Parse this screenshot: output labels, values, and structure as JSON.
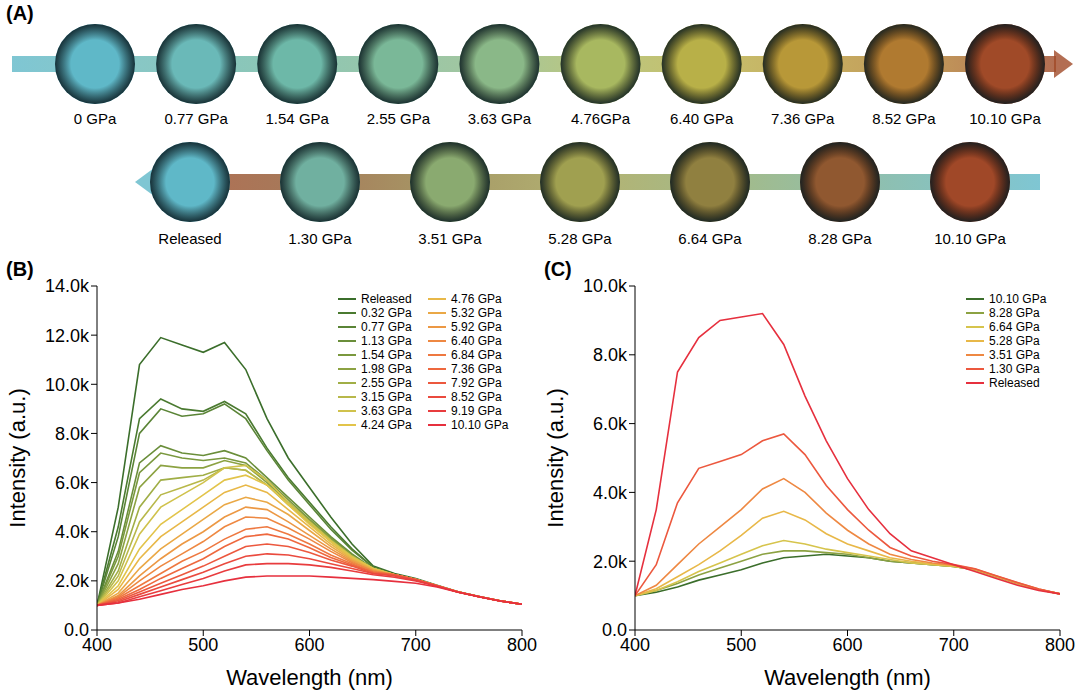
{
  "panel_a": {
    "label": "(A)",
    "rows": [
      {
        "labels": [
          "0 GPa",
          "0.77 GPa",
          "1.54 GPa",
          "2.55 GPa",
          "3.63 GPa",
          "4.76GPa",
          "6.40 GPa",
          "7.36 GPa",
          "8.52 GPa",
          "10.10 GPa"
        ],
        "colors": [
          "#5fb8c8",
          "#6ab9b8",
          "#6db8a8",
          "#7ab898",
          "#8ab888",
          "#a8b860",
          "#b8b048",
          "#b89838",
          "#b07a30",
          "#a04a28"
        ]
      },
      {
        "labels": [
          "Released",
          "1.30 GPa",
          "3.51 GPa",
          "5.28 GPa",
          "6.64 GPa",
          "8.28 GPa",
          "10.10 GPa"
        ],
        "colors": [
          "#5fb8c8",
          "#70b0a0",
          "#8aaa70",
          "#a0a050",
          "#908040",
          "#905830",
          "#a04828"
        ]
      }
    ]
  },
  "chart_data": [
    {
      "type": "line",
      "title": "(B)",
      "x_label": "Wavelength (nm)",
      "y_label": "Intensity (a.u.)",
      "legend": "upper right",
      "x": [
        400,
        420,
        440,
        460,
        480,
        500,
        520,
        540,
        560,
        580,
        600,
        620,
        640,
        660,
        680,
        700,
        720,
        740,
        760,
        780,
        800
      ],
      "xlim": [
        400,
        800
      ],
      "xticks": [
        400,
        500,
        600,
        700,
        800
      ],
      "ylim": [
        0,
        14000
      ],
      "yticks": [
        {
          "value": 0,
          "label": "0.0"
        },
        {
          "value": 2000,
          "label": "2.0k"
        },
        {
          "value": 4000,
          "label": "4.0k"
        },
        {
          "value": 6000,
          "label": "6.0k"
        },
        {
          "value": 8000,
          "label": "8.0k"
        },
        {
          "value": 10000,
          "label": "10.0k"
        },
        {
          "value": 12000,
          "label": "12.0k"
        },
        {
          "value": 14000,
          "label": "14.0k"
        }
      ],
      "series": [
        {
          "name": "Released",
          "color": "#3b6e2b",
          "values": [
            1000,
            5000,
            10800,
            11900,
            11600,
            11300,
            11700,
            10600,
            8600,
            7000,
            5800,
            4600,
            3500,
            2600,
            2300,
            2100,
            1820,
            1560,
            1360,
            1180,
            1050
          ]
        },
        {
          "name": "0.32 GPa",
          "color": "#4a7a30",
          "values": [
            1000,
            4200,
            8600,
            9400,
            9000,
            8900,
            9300,
            8800,
            7400,
            6200,
            5200,
            4200,
            3300,
            2550,
            2250,
            2050,
            1800,
            1550,
            1350,
            1180,
            1050
          ]
        },
        {
          "name": "0.77 GPa",
          "color": "#5a8436",
          "values": [
            1000,
            3800,
            8000,
            9000,
            8700,
            8800,
            9200,
            8600,
            7300,
            6100,
            5100,
            4100,
            3250,
            2550,
            2250,
            2050,
            1800,
            1550,
            1350,
            1180,
            1050
          ]
        },
        {
          "name": "1.13 GPa",
          "color": "#6a8e3a",
          "values": [
            1000,
            3200,
            6800,
            7500,
            7200,
            7100,
            7300,
            7000,
            6200,
            5400,
            4600,
            3800,
            3100,
            2500,
            2250,
            2050,
            1800,
            1550,
            1350,
            1180,
            1050
          ]
        },
        {
          "name": "1.54 GPa",
          "color": "#7a983e",
          "values": [
            1000,
            3000,
            6400,
            7200,
            7000,
            6900,
            7000,
            6800,
            6100,
            5300,
            4500,
            3750,
            3050,
            2500,
            2250,
            2050,
            1800,
            1550,
            1350,
            1180,
            1050
          ]
        },
        {
          "name": "1.98 GPa",
          "color": "#8ca242",
          "values": [
            1000,
            2700,
            5800,
            6700,
            6600,
            6600,
            6900,
            6700,
            6000,
            5200,
            4450,
            3700,
            3000,
            2500,
            2250,
            2050,
            1800,
            1550,
            1350,
            1180,
            1050
          ]
        },
        {
          "name": "2.55 GPa",
          "color": "#a0ae46",
          "values": [
            1000,
            2400,
            5000,
            6100,
            6200,
            6300,
            6600,
            6500,
            5900,
            5100,
            4400,
            3650,
            3000,
            2500,
            2250,
            2050,
            1800,
            1550,
            1350,
            1180,
            1050
          ]
        },
        {
          "name": "3.15 GPa",
          "color": "#b8b84a",
          "values": [
            1000,
            2200,
            4400,
            5500,
            5800,
            6100,
            6600,
            6500,
            5900,
            5100,
            4350,
            3600,
            2950,
            2500,
            2250,
            2050,
            1800,
            1550,
            1350,
            1180,
            1050
          ]
        },
        {
          "name": "3.63 GPa",
          "color": "#d0c24c",
          "values": [
            1000,
            2000,
            3900,
            5000,
            5500,
            6000,
            6600,
            6700,
            6100,
            5200,
            4400,
            3650,
            3000,
            2500,
            2250,
            2050,
            1800,
            1550,
            1350,
            1180,
            1050
          ]
        },
        {
          "name": "4.24 GPa",
          "color": "#e2c44a",
          "values": [
            1000,
            1800,
            3300,
            4300,
            4900,
            5500,
            6100,
            6300,
            5900,
            5100,
            4300,
            3600,
            2950,
            2500,
            2250,
            2050,
            1800,
            1550,
            1350,
            1180,
            1050
          ]
        },
        {
          "name": "4.76 GPa",
          "color": "#e8b848",
          "values": [
            1000,
            1650,
            2900,
            3800,
            4400,
            5000,
            5600,
            5900,
            5600,
            4900,
            4200,
            3500,
            2900,
            2450,
            2250,
            2050,
            1800,
            1550,
            1350,
            1180,
            1050
          ]
        },
        {
          "name": "5.32 GPa",
          "color": "#eaa846",
          "values": [
            1000,
            1500,
            2500,
            3300,
            3900,
            4500,
            5100,
            5400,
            5200,
            4700,
            4050,
            3400,
            2850,
            2450,
            2250,
            2050,
            1800,
            1550,
            1350,
            1180,
            1050
          ]
        },
        {
          "name": "5.92 GPa",
          "color": "#ec9844",
          "values": [
            1000,
            1400,
            2200,
            2900,
            3500,
            4000,
            4600,
            5000,
            4900,
            4400,
            3850,
            3300,
            2800,
            2400,
            2250,
            2050,
            1800,
            1550,
            1350,
            1180,
            1050
          ]
        },
        {
          "name": "6.40 GPa",
          "color": "#ee8842",
          "values": [
            1000,
            1350,
            2000,
            2600,
            3100,
            3600,
            4200,
            4600,
            4550,
            4150,
            3700,
            3200,
            2750,
            2400,
            2250,
            2050,
            1800,
            1550,
            1350,
            1180,
            1050
          ]
        },
        {
          "name": "6.84 GPa",
          "color": "#ee7840",
          "values": [
            1000,
            1300,
            1800,
            2300,
            2800,
            3200,
            3700,
            4100,
            4200,
            3900,
            3500,
            3050,
            2700,
            2350,
            2250,
            2050,
            1800,
            1550,
            1350,
            1180,
            1050
          ]
        },
        {
          "name": "7.36 GPa",
          "color": "#ee683e",
          "values": [
            1000,
            1250,
            1650,
            2100,
            2500,
            2900,
            3400,
            3800,
            3900,
            3700,
            3350,
            2950,
            2650,
            2350,
            2250,
            2050,
            1800,
            1550,
            1350,
            1180,
            1050
          ]
        },
        {
          "name": "7.92 GPa",
          "color": "#ec583e",
          "values": [
            1000,
            1200,
            1550,
            1900,
            2250,
            2600,
            3000,
            3400,
            3500,
            3400,
            3150,
            2850,
            2600,
            2300,
            2250,
            2050,
            1800,
            1550,
            1350,
            1180,
            1050
          ]
        },
        {
          "name": "8.52 GPa",
          "color": "#ea4a3e",
          "values": [
            1000,
            1150,
            1450,
            1750,
            2050,
            2350,
            2700,
            3000,
            3100,
            3050,
            2900,
            2700,
            2500,
            2300,
            2200,
            2030,
            1800,
            1550,
            1350,
            1180,
            1050
          ]
        },
        {
          "name": "9.19 GPa",
          "color": "#e83c3e",
          "values": [
            1000,
            1100,
            1350,
            1600,
            1850,
            2100,
            2400,
            2650,
            2700,
            2700,
            2650,
            2550,
            2400,
            2250,
            2150,
            2000,
            1780,
            1540,
            1350,
            1180,
            1050
          ]
        },
        {
          "name": "10.10 GPa",
          "color": "#e6303e",
          "values": [
            1000,
            1100,
            1250,
            1450,
            1650,
            1800,
            2000,
            2150,
            2200,
            2200,
            2200,
            2150,
            2100,
            2050,
            1980,
            1900,
            1750,
            1540,
            1340,
            1170,
            1050
          ]
        }
      ]
    },
    {
      "type": "line",
      "title": "(C)",
      "x_label": "Wavelength (nm)",
      "y_label": "Intensity (a.u.)",
      "legend": "upper right",
      "x": [
        400,
        420,
        440,
        460,
        480,
        500,
        520,
        540,
        560,
        580,
        600,
        620,
        640,
        660,
        680,
        700,
        720,
        740,
        760,
        780,
        800
      ],
      "xlim": [
        400,
        800
      ],
      "xticks": [
        400,
        500,
        600,
        700,
        800
      ],
      "ylim": [
        0,
        10000
      ],
      "yticks": [
        {
          "value": 0,
          "label": "0.0"
        },
        {
          "value": 2000,
          "label": "2.0k"
        },
        {
          "value": 4000,
          "label": "4.0k"
        },
        {
          "value": 6000,
          "label": "6.0k"
        },
        {
          "value": 8000,
          "label": "8.0k"
        },
        {
          "value": 10000,
          "label": "10.0k"
        }
      ],
      "series": [
        {
          "name": "10.10 GPa",
          "color": "#3b6e2b",
          "values": [
            1000,
            1100,
            1250,
            1450,
            1600,
            1750,
            1950,
            2100,
            2150,
            2200,
            2150,
            2100,
            2000,
            1950,
            1900,
            1850,
            1750,
            1550,
            1350,
            1180,
            1050
          ]
        },
        {
          "name": "8.28 GPa",
          "color": "#8ca242",
          "values": [
            1000,
            1150,
            1350,
            1600,
            1800,
            2000,
            2200,
            2300,
            2300,
            2250,
            2200,
            2100,
            2000,
            1950,
            1900,
            1850,
            1750,
            1550,
            1350,
            1180,
            1050
          ]
        },
        {
          "name": "6.64 GPa",
          "color": "#d6c44c",
          "values": [
            1000,
            1150,
            1400,
            1700,
            1950,
            2200,
            2450,
            2600,
            2500,
            2350,
            2250,
            2150,
            2050,
            1950,
            1900,
            1850,
            1750,
            1550,
            1350,
            1180,
            1050
          ]
        },
        {
          "name": "5.28 GPa",
          "color": "#e8b848",
          "values": [
            1000,
            1200,
            1550,
            1900,
            2300,
            2750,
            3250,
            3450,
            3200,
            2800,
            2500,
            2300,
            2100,
            2000,
            1920,
            1860,
            1760,
            1560,
            1360,
            1180,
            1050
          ]
        },
        {
          "name": "3.51 GPa",
          "color": "#ee8842",
          "values": [
            1000,
            1300,
            1900,
            2500,
            3000,
            3500,
            4100,
            4400,
            4000,
            3400,
            2900,
            2500,
            2200,
            2050,
            1950,
            1880,
            1770,
            1570,
            1370,
            1190,
            1050
          ]
        },
        {
          "name": "1.30 GPa",
          "color": "#ec583e",
          "values": [
            1000,
            1900,
            3700,
            4700,
            4900,
            5100,
            5500,
            5700,
            5100,
            4200,
            3500,
            2900,
            2400,
            2150,
            2000,
            1900,
            1780,
            1580,
            1380,
            1190,
            1050
          ]
        },
        {
          "name": "Released",
          "color": "#e6303e",
          "values": [
            1000,
            3500,
            7500,
            8500,
            9000,
            9100,
            9200,
            8300,
            6800,
            5500,
            4400,
            3500,
            2800,
            2300,
            2100,
            1900,
            1700,
            1500,
            1300,
            1150,
            1050
          ]
        }
      ]
    }
  ]
}
